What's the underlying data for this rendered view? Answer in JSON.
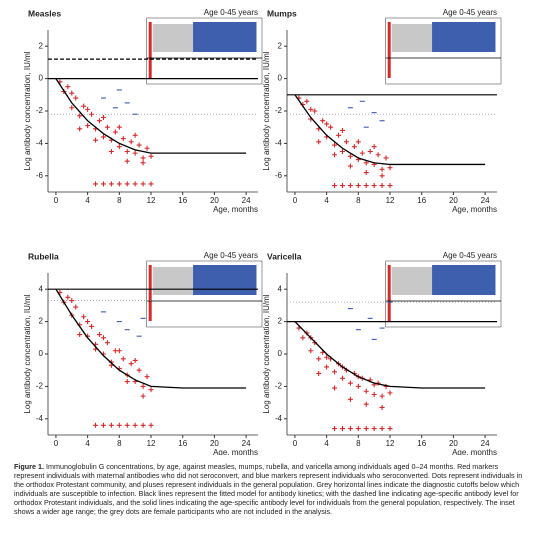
{
  "chart_data": [
    {
      "type": "scatter",
      "title": "Measles",
      "inset_label": "Age 0-45 years",
      "x_label": "Age, months",
      "y_label": "Log antibody concentration, IU/ml",
      "xlim": [
        -1,
        25.5
      ],
      "xticks": [
        0,
        4,
        8,
        12,
        16,
        20,
        24
      ],
      "ylim": [
        -7,
        3
      ],
      "yticks": [
        2,
        0,
        -2,
        -4,
        -6
      ],
      "series": [
        {
          "color": "#d42a2a",
          "marker": "+",
          "x": [
            0.5,
            1,
            1.5,
            2,
            2.5,
            3,
            3.5,
            4,
            4.5,
            5,
            5.5,
            6,
            6.5,
            7,
            7.5,
            8,
            8.5,
            9,
            9.5,
            10,
            10.5,
            11,
            11.5,
            12,
            2,
            4,
            6,
            8,
            10,
            3,
            5,
            7,
            9,
            11,
            5,
            6,
            7,
            8,
            9,
            10,
            11,
            12
          ],
          "values": [
            -0.2,
            -0.8,
            -0.5,
            -1.8,
            -1.2,
            -2.3,
            -1.7,
            -2.9,
            -2.2,
            -3.1,
            -2.6,
            -3.6,
            -3.0,
            -3.8,
            -3.3,
            -4.2,
            -3.7,
            -4.5,
            -3.9,
            -4.6,
            -4.1,
            -4.9,
            -4.3,
            -4.8,
            -0.9,
            -1.9,
            -2.4,
            -3.0,
            -3.5,
            -3.1,
            -3.8,
            -4.5,
            -5.1,
            -5.2,
            -6.5,
            -6.5,
            -6.5,
            -6.5,
            -6.5,
            -6.5,
            -6.5,
            -6.5
          ]
        },
        {
          "color": "#3a5bb0",
          "marker": "-",
          "x": [
            6,
            7.5,
            8,
            9,
            10
          ],
          "values": [
            -1.2,
            -1.8,
            -0.7,
            -1.5,
            -2.2
          ]
        }
      ],
      "fit": {
        "color": "#000000",
        "x": [
          0,
          2,
          4,
          6,
          8,
          10,
          12,
          16,
          20,
          24
        ],
        "values": [
          0,
          -1.5,
          -2.6,
          -3.4,
          -4,
          -4.4,
          -4.6,
          -4.6,
          -4.6,
          -4.6
        ]
      },
      "cutoffs": [
        {
          "value": 1.2,
          "style": "dashed"
        },
        {
          "value": 0,
          "style": "solid"
        },
        {
          "value": -2.2,
          "style": "dotted"
        }
      ]
    },
    {
      "type": "scatter",
      "title": "Mumps",
      "inset_label": "Age 0-45 years",
      "x_label": "Age, months",
      "y_label": "Log antibody concentration, IU/ml",
      "xlim": [
        -1,
        25.5
      ],
      "xticks": [
        0,
        4,
        8,
        12,
        16,
        20,
        24
      ],
      "ylim": [
        -7,
        3
      ],
      "yticks": [
        2,
        0,
        -2,
        -4,
        -6
      ],
      "series": [
        {
          "color": "#d42a2a",
          "marker": "+",
          "x": [
            0.5,
            1,
            1.5,
            2,
            2.5,
            3,
            3.5,
            4,
            4.5,
            5,
            5.5,
            6,
            6.5,
            7,
            7.5,
            8,
            8.5,
            9,
            9.5,
            10,
            10.5,
            11,
            11.5,
            12,
            2,
            4,
            6,
            8,
            10,
            3,
            5,
            7,
            9,
            11,
            5,
            6,
            7,
            8,
            9,
            10,
            11,
            12
          ],
          "values": [
            -1.2,
            -1.6,
            -1.4,
            -2.5,
            -2.0,
            -3.1,
            -2.6,
            -3.6,
            -3.0,
            -4.1,
            -3.5,
            -4.5,
            -3.9,
            -4.8,
            -4.2,
            -5.0,
            -4.6,
            -5.2,
            -4.5,
            -5.3,
            -4.7,
            -5.6,
            -4.9,
            -5.5,
            -1.9,
            -2.8,
            -3.2,
            -3.9,
            -4.2,
            -3.9,
            -4.7,
            -5.4,
            -5.8,
            -6.0,
            -6.6,
            -6.6,
            -6.6,
            -6.6,
            -6.6,
            -6.6,
            -6.6,
            -6.6
          ]
        },
        {
          "color": "#3a5bb0",
          "marker": "-",
          "x": [
            7,
            8.5,
            9,
            10,
            11
          ],
          "values": [
            -1.8,
            -1.4,
            -3.0,
            -2.1,
            -2.6
          ]
        }
      ],
      "fit": {
        "color": "#000000",
        "x": [
          0,
          2,
          4,
          6,
          8,
          10,
          12,
          16,
          20,
          24
        ],
        "values": [
          -1,
          -2.4,
          -3.5,
          -4.3,
          -4.9,
          -5.2,
          -5.3,
          -5.3,
          -5.3,
          -5.3
        ]
      },
      "cutoffs": [
        {
          "value": -1,
          "style": "solid"
        },
        {
          "value": -2.2,
          "style": "dotted"
        }
      ]
    },
    {
      "type": "scatter",
      "title": "Rubella",
      "inset_label": "Age 0-45 years",
      "x_label": "Age, months",
      "y_label": "Log antibody concentration, IU/ml",
      "xlim": [
        -1,
        25.5
      ],
      "xticks": [
        0,
        4,
        8,
        12,
        16,
        20,
        24
      ],
      "ylim": [
        -5,
        5
      ],
      "yticks": [
        4,
        2,
        0,
        -2,
        -4
      ],
      "series": [
        {
          "color": "#d42a2a",
          "marker": "+",
          "x": [
            0.5,
            1,
            1.5,
            2,
            2.5,
            3,
            3.5,
            4,
            4.5,
            5,
            5.5,
            6,
            6.5,
            7,
            7.5,
            8,
            8.5,
            9,
            9.5,
            10,
            10.5,
            11,
            11.5,
            12,
            2,
            4,
            6,
            8,
            10,
            3,
            5,
            7,
            9,
            11,
            5,
            6,
            7,
            8,
            9,
            10,
            11,
            12
          ],
          "values": [
            3.8,
            3.2,
            3.5,
            2.4,
            2.9,
            1.8,
            2.3,
            1.1,
            1.7,
            0.6,
            1.2,
            0.0,
            0.7,
            -0.5,
            0.2,
            -0.9,
            -0.3,
            -1.3,
            -0.6,
            -1.7,
            -1.0,
            -2.0,
            -1.4,
            -2.2,
            3.3,
            2.0,
            1.0,
            0.2,
            -0.4,
            1.2,
            0.3,
            -0.7,
            -1.7,
            -2.6,
            -4.4,
            -4.4,
            -4.4,
            -4.4,
            -4.4,
            -4.4,
            -4.4,
            -4.4
          ]
        },
        {
          "color": "#3a5bb0",
          "marker": "-",
          "x": [
            6,
            8,
            9,
            10.5,
            11
          ],
          "values": [
            2.6,
            2.0,
            1.5,
            1.1,
            2.2
          ]
        }
      ],
      "fit": {
        "color": "#000000",
        "x": [
          0,
          2,
          4,
          6,
          8,
          10,
          12,
          16,
          20,
          24
        ],
        "values": [
          4,
          2.4,
          1.0,
          -0.1,
          -1.0,
          -1.6,
          -2.0,
          -2.1,
          -2.1,
          -2.1
        ]
      },
      "cutoffs": [
        {
          "value": 4,
          "style": "solid"
        },
        {
          "value": 3.3,
          "style": "dotted"
        }
      ]
    },
    {
      "type": "scatter",
      "title": "Varicella",
      "inset_label": "Age 0-45 years",
      "x_label": "Age, months",
      "y_label": "Log antibody concentration, IU/ml",
      "xlim": [
        -1,
        25.5
      ],
      "xticks": [
        0,
        4,
        8,
        12,
        16,
        20,
        24
      ],
      "ylim": [
        -5,
        5
      ],
      "yticks": [
        4,
        2,
        0,
        -2,
        -4
      ],
      "series": [
        {
          "color": "#d42a2a",
          "marker": "+",
          "x": [
            0.5,
            1,
            1.5,
            2,
            2.5,
            3,
            3.5,
            4,
            4.5,
            5,
            5.5,
            6,
            6.5,
            7,
            7.5,
            8,
            8.5,
            9,
            9.5,
            10,
            10.5,
            11,
            11.5,
            12,
            2,
            4,
            6,
            8,
            10,
            3,
            5,
            7,
            9,
            11,
            5,
            6,
            7,
            8,
            9,
            10,
            11,
            12
          ],
          "values": [
            1.6,
            1.0,
            1.3,
            0.2,
            0.7,
            -0.3,
            0.1,
            -0.8,
            -0.3,
            -1.1,
            -0.6,
            -1.5,
            -1.0,
            -1.8,
            -1.2,
            -2.0,
            -1.5,
            -2.3,
            -1.6,
            -2.5,
            -1.8,
            -2.6,
            -2.0,
            -2.4,
            1.0,
            -0.2,
            -0.8,
            -1.4,
            -1.9,
            -1.2,
            -2.1,
            -2.8,
            -3.1,
            -3.3,
            -4.6,
            -4.6,
            -4.6,
            -4.6,
            -4.6,
            -4.6,
            -4.6,
            -4.6
          ]
        },
        {
          "color": "#3a5bb0",
          "marker": "-",
          "x": [
            7,
            8,
            9.5,
            10,
            11,
            12
          ],
          "values": [
            2.8,
            1.5,
            2.2,
            0.9,
            1.6,
            3.2
          ]
        }
      ],
      "fit": {
        "color": "#000000",
        "x": [
          0,
          2,
          4,
          6,
          8,
          10,
          12,
          16,
          20,
          24
        ],
        "values": [
          2,
          1.0,
          0,
          -0.8,
          -1.4,
          -1.8,
          -2.0,
          -2.1,
          -2.1,
          -2.1
        ]
      },
      "cutoffs": [
        {
          "value": 2,
          "style": "solid"
        },
        {
          "value": 3.2,
          "style": "dotted"
        }
      ]
    }
  ],
  "caption_label": "Figure 1.",
  "caption": "Immunoglobulin G concentrations, by age, against measles, mumps, rubella, and varicella among individuals aged 0–24 months. Red markers represent individuals with maternal antibodies who did not seroconvert, and blue markers represent individuals who seroconverted. Dots represent individuals in the orthodox Protestant community, and pluses represent individuals in the general population. Grey horizontal lines indicate the diagnostic cutoffs below which individuals are susceptible to infection. Black lines represent the fitted model for antibody kinetics; with the dashed line indicating age-specific antibody level for orthodox Protestant individuals, and the solid lines indicating the age-specific antibody level for individuals from the general population, respectively. The inset shows a wider age range; the grey dots are female participants who are not included in the analysis."
}
